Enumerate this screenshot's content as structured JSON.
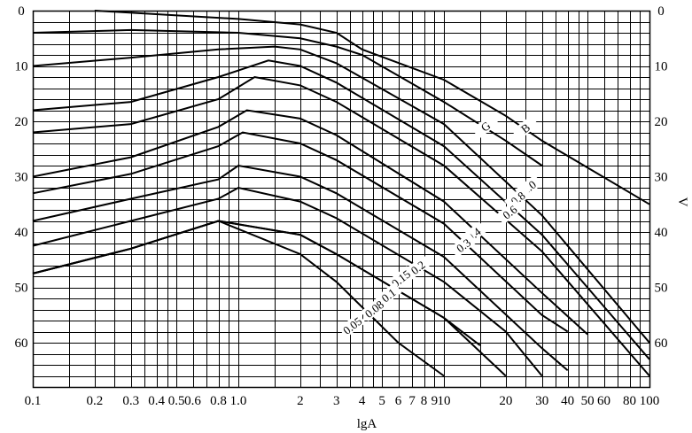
{
  "chart_data": {
    "type": "line",
    "title": "",
    "xlabel": "lgA",
    "ylabel": "V",
    "x_scale": "log",
    "xlim": [
      0.1,
      100
    ],
    "ylim": [
      0,
      68
    ],
    "y_direction": "down",
    "grid": true,
    "x_ticks": [
      "0.1",
      "0.2",
      "0.3",
      "0.4",
      "0.5",
      "0.6",
      "0.8",
      "1.0",
      "2",
      "3",
      "4",
      "5",
      "6",
      "7",
      "8",
      "9",
      "10",
      "20",
      "30",
      "40",
      "50",
      "60",
      "80",
      "100"
    ],
    "y_ticks_left": [
      "0",
      "10",
      "20",
      "30",
      "40",
      "50",
      "60"
    ],
    "y_ticks_right": [
      "0",
      "10",
      "20",
      "30",
      "40",
      "50",
      "60"
    ],
    "series": [
      {
        "name": "B",
        "x": [
          0.2,
          1.0,
          2.0,
          3.0,
          4.0,
          10,
          20,
          30,
          100
        ],
        "y": [
          0,
          1.5,
          2.5,
          4,
          7,
          12.5,
          19,
          23.5,
          35
        ]
      },
      {
        "name": "G",
        "x": [
          0.1,
          0.3,
          1.0,
          2.0,
          3.0,
          4.0,
          10,
          20,
          30
        ],
        "y": [
          4,
          3.5,
          4,
          5,
          6.5,
          8,
          16.5,
          23.5,
          28
        ]
      },
      {
        "name": "1.0",
        "x": [
          0.1,
          0.3,
          0.8,
          1.5,
          2.0,
          3.0,
          10,
          30,
          100
        ],
        "y": [
          10,
          8.5,
          7,
          6.5,
          7,
          9.5,
          20.5,
          37,
          60
        ]
      },
      {
        "name": "0.8",
        "x": [
          0.1,
          0.3,
          0.8,
          1.4,
          2.0,
          3.0,
          10,
          30,
          100
        ],
        "y": [
          18,
          16.5,
          12,
          9,
          10,
          13,
          24.5,
          40.5,
          63
        ]
      },
      {
        "name": "0.6",
        "x": [
          0.1,
          0.3,
          0.8,
          1.2,
          2.0,
          3.0,
          10,
          30,
          100
        ],
        "y": [
          22,
          20.5,
          16,
          12,
          13.5,
          16.5,
          28,
          43.5,
          66
        ]
      },
      {
        "name": "0.4",
        "x": [
          0.1,
          0.3,
          0.8,
          1.1,
          2.0,
          3.0,
          10,
          30,
          50
        ],
        "y": [
          30,
          26.5,
          21,
          18,
          19.5,
          22.5,
          34.5,
          51,
          58.5
        ]
      },
      {
        "name": "0.3",
        "x": [
          0.1,
          0.3,
          0.8,
          1.05,
          2.0,
          3.0,
          10,
          30,
          40
        ],
        "y": [
          33,
          29.5,
          24.5,
          22,
          24,
          27,
          38.5,
          55,
          58
        ]
      },
      {
        "name": "0.2",
        "x": [
          0.1,
          0.3,
          0.8,
          1.0,
          2.0,
          3.0,
          10,
          30,
          40
        ],
        "y": [
          38,
          34,
          30.5,
          28,
          30,
          33,
          44.5,
          61,
          65
        ]
      },
      {
        "name": "0.15",
        "x": [
          0.1,
          0.3,
          0.8,
          1.0,
          2.0,
          3.0,
          10,
          20,
          30
        ],
        "y": [
          42.5,
          38,
          34,
          32,
          34.5,
          37.5,
          49,
          58,
          66
        ]
      },
      {
        "name": "0.1",
        "x": [
          0.1,
          0.3,
          0.8,
          2.0,
          3.0,
          10,
          20
        ],
        "y": [
          47.5,
          43,
          38,
          40.5,
          44,
          55.5,
          66
        ]
      },
      {
        "name": "0.08",
        "x": [
          0.1,
          0.3,
          0.8,
          2.0,
          3.0,
          10,
          15
        ],
        "y": [
          47.5,
          43,
          38,
          40.5,
          44,
          55.5,
          60.5
        ]
      },
      {
        "name": "0.05",
        "x": [
          0.1,
          0.3,
          0.8,
          2.0,
          3.0,
          6.0,
          10
        ],
        "y": [
          47.5,
          43,
          38,
          44,
          49,
          60,
          66
        ]
      }
    ],
    "curve_labels": [
      "B",
      "G",
      "1.0",
      "0.8",
      "0.6",
      "0.4",
      "0.3",
      "0.2",
      "0.15",
      "0.1",
      "0.08",
      "0.05"
    ]
  }
}
